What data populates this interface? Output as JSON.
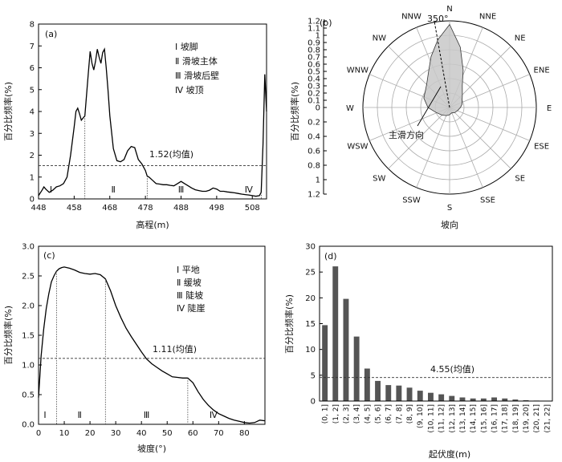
{
  "chart_data": [
    {
      "panel": "(a)",
      "type": "line",
      "xlabel": "高程(m)",
      "ylabel": "百分比频率(%)",
      "xlim": [
        448,
        512
      ],
      "ylim": [
        0,
        8
      ],
      "xticks": [
        448,
        458,
        468,
        478,
        488,
        498,
        508
      ],
      "yticks": [
        0,
        1,
        2,
        3,
        4,
        5,
        6,
        7,
        8
      ],
      "mean": 1.52,
      "mean_label": "1.52(均值)",
      "legend": [
        "Ⅰ 坡脚",
        "Ⅱ 滑坡主体",
        "Ⅲ 滑坡后壁",
        "Ⅳ 坡顶"
      ],
      "zones": [
        {
          "label": "Ⅰ",
          "x": 451.5
        },
        {
          "label": "Ⅱ",
          "x": 469
        },
        {
          "label": "Ⅲ",
          "x": 488
        },
        {
          "label": "Ⅳ",
          "x": 507
        }
      ],
      "boundaries": [
        461,
        478.5,
        510.5
      ],
      "x": [
        448,
        449,
        449.5,
        450,
        451,
        452,
        453,
        454,
        455,
        456,
        457,
        458,
        458.5,
        459,
        459.5,
        460,
        461,
        462,
        462.5,
        463,
        463.5,
        464,
        464.5,
        465,
        465.5,
        466,
        466.5,
        467,
        467.5,
        468,
        469,
        470,
        471,
        472,
        473,
        474,
        475,
        476,
        477,
        478,
        478.5,
        479,
        480,
        481,
        482,
        483,
        484,
        485,
        486,
        487,
        488,
        489,
        490,
        491,
        492,
        493,
        494,
        495,
        496,
        497,
        498,
        499,
        500,
        501,
        502,
        503,
        504,
        505,
        506,
        507,
        508,
        509,
        510,
        510.5,
        511,
        511.5,
        512
      ],
      "y": [
        0.15,
        0.4,
        0.55,
        0.45,
        0.3,
        0.4,
        0.55,
        0.6,
        0.7,
        1.0,
        2.0,
        3.3,
        4.0,
        4.15,
        3.9,
        3.6,
        3.8,
        5.8,
        6.75,
        6.2,
        5.9,
        6.3,
        6.85,
        6.5,
        6.2,
        6.7,
        6.85,
        6.0,
        5.0,
        3.8,
        2.3,
        1.75,
        1.7,
        1.8,
        2.2,
        2.4,
        2.35,
        1.8,
        1.6,
        1.3,
        1.05,
        1.0,
        0.85,
        0.7,
        0.68,
        0.65,
        0.65,
        0.62,
        0.6,
        0.7,
        0.8,
        0.7,
        0.6,
        0.5,
        0.42,
        0.38,
        0.35,
        0.35,
        0.4,
        0.5,
        0.45,
        0.35,
        0.35,
        0.32,
        0.3,
        0.28,
        0.25,
        0.22,
        0.2,
        0.18,
        0.15,
        0.12,
        0.15,
        0.3,
        2.5,
        5.7,
        4.0
      ]
    },
    {
      "panel": "(b)",
      "type": "rose",
      "xlabel": "坡向",
      "ylabel": "百分比频率(%)",
      "ylim": [
        0,
        1.2
      ],
      "yticks_up": [
        0,
        0.1,
        0.2,
        0.3,
        0.4,
        0.5,
        0.6,
        0.7,
        0.8,
        0.9,
        1.0,
        1.1,
        1.2
      ],
      "yticks_down": [
        0.2,
        0.4,
        0.6,
        0.8,
        1.0,
        1.2
      ],
      "directions": [
        "N",
        "NNE",
        "NE",
        "ENE",
        "E",
        "ESE",
        "SE",
        "SSE",
        "S",
        "SSW",
        "SW",
        "WSW",
        "W",
        "WNW",
        "NW",
        "NNW"
      ],
      "rose_angles": [
        0,
        10,
        20,
        30,
        45,
        60,
        75,
        90,
        110,
        135,
        160,
        180,
        200,
        225,
        250,
        270,
        290,
        315,
        330,
        340,
        350
      ],
      "rose_values": [
        1.15,
        0.85,
        0.55,
        0.35,
        0.25,
        0.2,
        0.18,
        0.15,
        0.12,
        0.1,
        0.08,
        0.1,
        0.12,
        0.15,
        0.2,
        0.3,
        0.38,
        0.45,
        0.58,
        0.75,
        0.95
      ],
      "main_direction_deg": 350,
      "main_direction_label": "350°",
      "arrow_label": "主滑方向"
    },
    {
      "panel": "(c)",
      "type": "line",
      "xlabel": "坡度(°)",
      "ylabel": "百分比频率(%)",
      "xlim": [
        0,
        88
      ],
      "ylim": [
        0,
        3.0
      ],
      "xticks": [
        0,
        10,
        20,
        30,
        40,
        50,
        60,
        70,
        80
      ],
      "yticks": [
        0,
        0.5,
        1.0,
        1.5,
        2.0,
        2.5,
        3.0
      ],
      "mean": 1.11,
      "mean_label": "1.11(均值)",
      "legend": [
        "Ⅰ 平地",
        "Ⅱ 缓坡",
        "Ⅲ 陡坡",
        "Ⅳ 陡崖"
      ],
      "zones": [
        {
          "label": "Ⅰ",
          "x": 2.5
        },
        {
          "label": "Ⅱ",
          "x": 16
        },
        {
          "label": "Ⅲ",
          "x": 42
        },
        {
          "label": "Ⅳ",
          "x": 68
        }
      ],
      "boundaries": [
        7,
        26,
        58
      ],
      "x": [
        0,
        1,
        2,
        3,
        4,
        5,
        6,
        7,
        8,
        9,
        10,
        12,
        14,
        16,
        18,
        20,
        22,
        24,
        26,
        28,
        30,
        32,
        34,
        36,
        38,
        40,
        42,
        44,
        46,
        48,
        50,
        52,
        54,
        56,
        58,
        60,
        62,
        64,
        66,
        68,
        70,
        72,
        74,
        76,
        78,
        80,
        82,
        84,
        86,
        88
      ],
      "y": [
        0.45,
        1.15,
        1.6,
        1.95,
        2.2,
        2.4,
        2.5,
        2.58,
        2.62,
        2.64,
        2.65,
        2.63,
        2.6,
        2.56,
        2.54,
        2.53,
        2.54,
        2.52,
        2.45,
        2.25,
        2.0,
        1.8,
        1.62,
        1.48,
        1.35,
        1.22,
        1.1,
        1.02,
        0.96,
        0.9,
        0.85,
        0.8,
        0.79,
        0.78,
        0.78,
        0.7,
        0.55,
        0.42,
        0.32,
        0.24,
        0.18,
        0.14,
        0.1,
        0.07,
        0.05,
        0.03,
        0.02,
        0.03,
        0.07,
        0.06
      ]
    },
    {
      "panel": "(d)",
      "type": "bar",
      "xlabel": "起伏度(m)",
      "ylabel": "百分比频率(%)",
      "ylim": [
        0,
        30
      ],
      "yticks": [
        0,
        5,
        10,
        15,
        20,
        25,
        30
      ],
      "mean": 4.55,
      "mean_label": "4.55(均值)",
      "categories": [
        "(0, 1]",
        "(1, 2]",
        "(2, 3]",
        "(3, 4]",
        "(4, 5]",
        "(5, 6]",
        "(6, 7]",
        "(7, 8]",
        "(8, 9]",
        "(9, 10]",
        "(10, 11]",
        "(11, 12]",
        "(12, 13]",
        "(13, 14]",
        "(14, 15]",
        "(15, 16]",
        "(16, 17]",
        "(17, 18]",
        "(18, 19]",
        "(19, 20]",
        "(20, 21]",
        "(21, 22]"
      ],
      "values": [
        14.7,
        26.1,
        19.8,
        12.5,
        6.3,
        3.9,
        3.1,
        3.0,
        2.6,
        2.0,
        1.6,
        1.3,
        1.0,
        0.7,
        0.5,
        0.5,
        0.7,
        0.5,
        0.3,
        0.15,
        0.1,
        0.05
      ]
    }
  ]
}
